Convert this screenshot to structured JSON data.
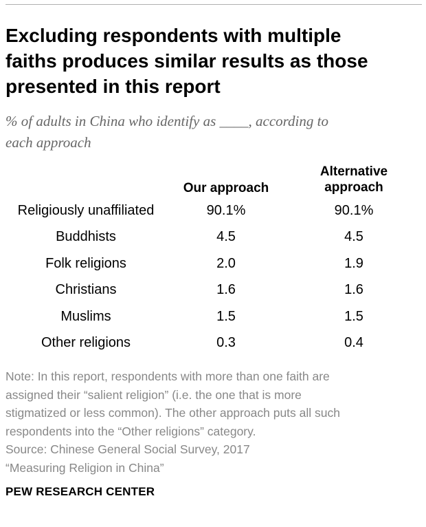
{
  "header": {
    "title_lines": [
      "Excluding respondents with multiple",
      "faiths produces similar results as those",
      "presented in this report"
    ],
    "subtitle_lines": [
      "% of adults in China who identify as ____, according to",
      "each approach"
    ]
  },
  "chart_data": {
    "type": "table",
    "title": "Excluding respondents with multiple faiths produces similar results as those presented in this report",
    "subtitle": "% of adults in China who identify as ____, according to each approach",
    "columns": [
      "Our approach",
      "Alternative approach"
    ],
    "column_heads": {
      "ours": [
        "Our approach"
      ],
      "alt": [
        "Alternative",
        "approach"
      ]
    },
    "categories": [
      "Religiously unaffiliated",
      "Buddhists",
      "Folk religions",
      "Christians",
      "Muslims",
      "Other religions"
    ],
    "rows": [
      {
        "label": "Religiously unaffiliated",
        "ours": "90.1%",
        "alt": "90.1%"
      },
      {
        "label": "Buddhists",
        "ours": "4.5",
        "alt": "4.5"
      },
      {
        "label": "Folk religions",
        "ours": "2.0",
        "alt": "1.9"
      },
      {
        "label": "Christians",
        "ours": "1.6",
        "alt": "1.6"
      },
      {
        "label": "Muslims",
        "ours": "1.5",
        "alt": "1.5"
      },
      {
        "label": "Other religions",
        "ours": "0.3",
        "alt": "0.4"
      }
    ],
    "series": [
      {
        "name": "Our approach",
        "values": [
          90.1,
          4.5,
          2.0,
          1.6,
          1.5,
          0.3
        ]
      },
      {
        "name": "Alternative approach",
        "values": [
          90.1,
          4.5,
          1.9,
          1.6,
          1.5,
          0.4
        ]
      }
    ],
    "unit": "%"
  },
  "note": {
    "lines": [
      "Note: In this report, respondents with more than one faith are",
      "assigned their “salient religion” (i.e. the one that is more",
      "stigmatized or less common). The other approach puts all such",
      "respondents into the “Other religions” category.",
      "Source: Chinese General Social Survey, 2017",
      "“Measuring Religion in China”"
    ]
  },
  "footer": {
    "brand": "PEW RESEARCH CENTER"
  },
  "colors": {
    "title": "#000000",
    "subtitle": "#666666",
    "note": "#888888",
    "rule": "#b0b0b0"
  }
}
